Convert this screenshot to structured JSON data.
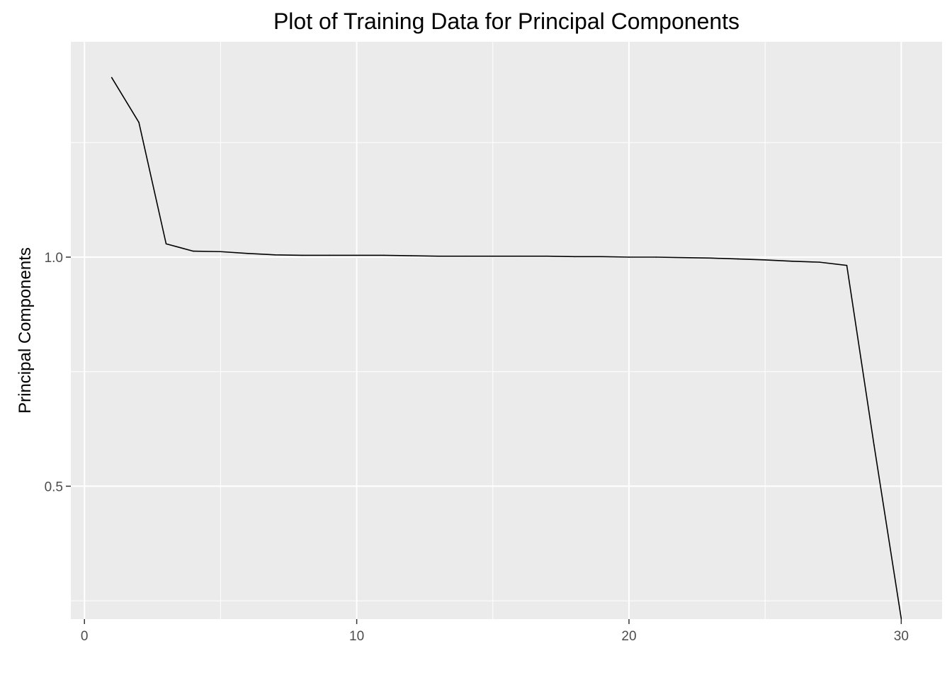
{
  "chart_data": {
    "type": "line",
    "title": "Plot of Training Data for Principal Components",
    "xlabel": "",
    "ylabel": "Principal Components",
    "xlim": [
      -0.5,
      31.5
    ],
    "ylim": [
      0.21,
      1.47
    ],
    "x_ticks": [
      0,
      10,
      20,
      30
    ],
    "y_ticks": [
      0.5,
      1.0
    ],
    "x_tick_labels": [
      "0",
      "10",
      "20",
      "30"
    ],
    "y_tick_labels": [
      "0.5",
      "1.0"
    ],
    "x_minor_ticks": [
      5,
      15,
      25
    ],
    "y_minor_ticks": [
      0.25,
      0.75,
      1.25
    ],
    "grid": true,
    "legend": "none",
    "colors": {
      "panel_background": "#ebebeb",
      "grid_line": "#ffffff",
      "line": "#000000",
      "tick_text": "#4d4d4d",
      "tick_mark": "#333333"
    },
    "series": [
      {
        "x": [
          1,
          2,
          3,
          4,
          5,
          6,
          7,
          8,
          9,
          10,
          11,
          12,
          13,
          14,
          15,
          16,
          17,
          18,
          19,
          20,
          21,
          22,
          23,
          24,
          25,
          26,
          27,
          28,
          29,
          30
        ],
        "values": [
          1.392,
          1.294,
          1.029,
          1.013,
          1.012,
          1.008,
          1.005,
          1.004,
          1.004,
          1.004,
          1.004,
          1.003,
          1.002,
          1.002,
          1.002,
          1.002,
          1.002,
          1.001,
          1.001,
          1.0,
          1.0,
          0.999,
          0.998,
          0.996,
          0.994,
          0.991,
          0.989,
          0.982,
          0.59,
          0.211
        ]
      }
    ]
  }
}
